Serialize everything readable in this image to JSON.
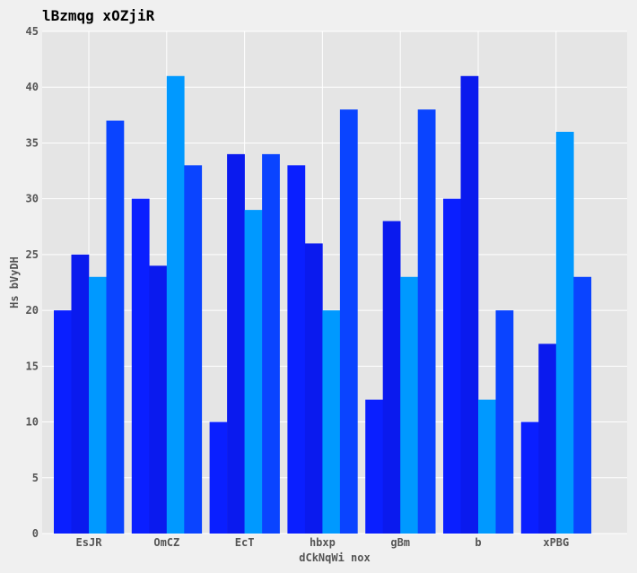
{
  "chart_data": {
    "type": "bar",
    "title": "lBzmqg xOZjiR",
    "xlabel": "dCkNqWi nox",
    "ylabel": "Hs bVyDH",
    "categories": [
      "EsJR",
      "OmCZ",
      "EcT",
      "hbxp",
      "gBm",
      "b",
      "xPBG"
    ],
    "series": [
      {
        "values": [
          20,
          30,
          10,
          33,
          12,
          30,
          10
        ],
        "color": "#0a1fff"
      },
      {
        "values": [
          25,
          24,
          34,
          26,
          28,
          41,
          17
        ],
        "color": "#0a1aee"
      },
      {
        "values": [
          23,
          41,
          29,
          20,
          23,
          12,
          36
        ],
        "color": "#0099ff"
      },
      {
        "values": [
          37,
          33,
          34,
          38,
          38,
          20,
          23
        ],
        "color": "#0a44ff"
      }
    ],
    "ylim": [
      0,
      45
    ],
    "yticks": [
      0,
      5,
      10,
      15,
      20,
      25,
      30,
      35,
      40,
      45
    ],
    "grid": true,
    "legend": "none",
    "plot_background": "#e5e5e5",
    "figure_background": "#f0f0f0",
    "grid_color": "#ffffff"
  }
}
